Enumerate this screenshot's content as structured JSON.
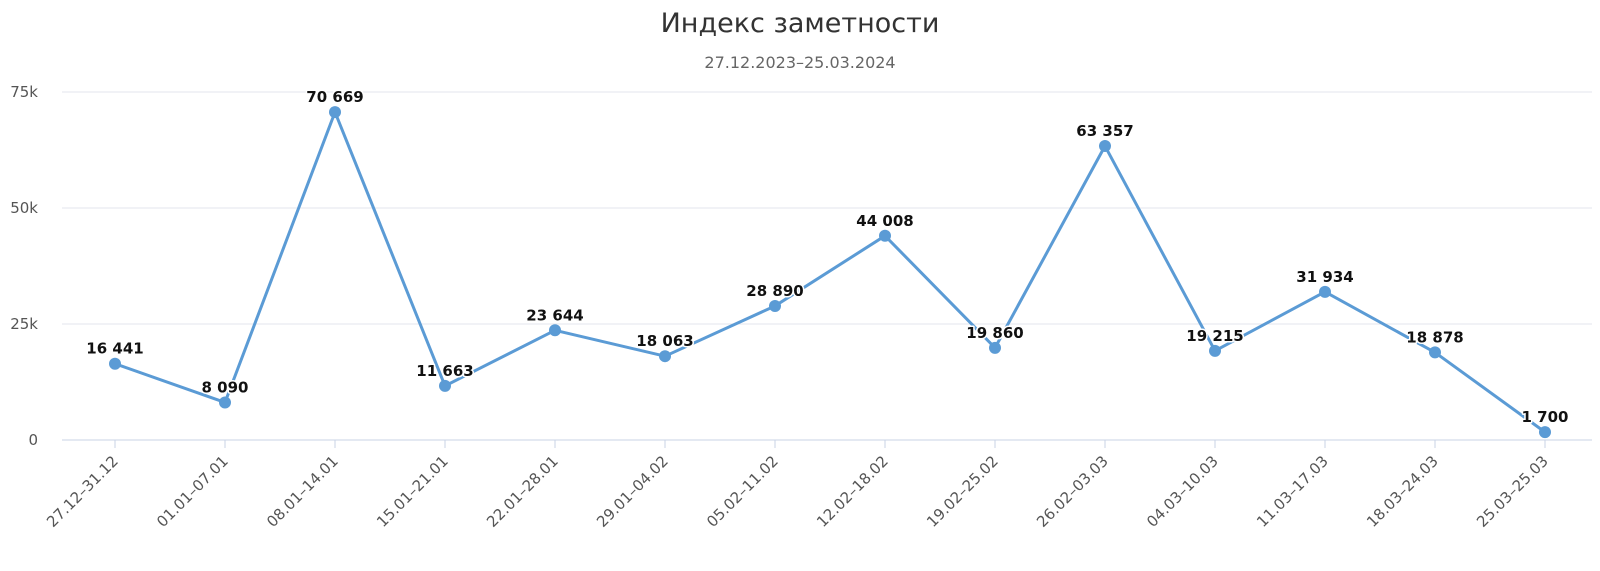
{
  "chart_data": {
    "type": "line",
    "title": "Индекс заметности",
    "subtitle": "27.12.2023–25.03.2024",
    "xlabel": "",
    "ylabel": "",
    "ylim": [
      0,
      75000
    ],
    "y_ticks": [
      {
        "value": 0,
        "label": "0"
      },
      {
        "value": 25000,
        "label": "25k"
      },
      {
        "value": 50000,
        "label": "50k"
      },
      {
        "value": 75000,
        "label": "75k"
      }
    ],
    "grid": true,
    "legend": "none",
    "color": "#5b9bd5",
    "categories": [
      "27.12–31.12",
      "01.01–07.01",
      "08.01–14.01",
      "15.01–21.01",
      "22.01–28.01",
      "29.01–04.02",
      "05.02–11.02",
      "12.02–18.02",
      "19.02–25.02",
      "26.02–03.03",
      "04.03–10.03",
      "11.03–17.03",
      "18.03–24.03",
      "25.03–25.03"
    ],
    "values": [
      16441,
      8090,
      70669,
      11663,
      23644,
      18063,
      28890,
      44008,
      19860,
      63357,
      19215,
      31934,
      18878,
      1700
    ],
    "data_labels": [
      "16 441",
      "8 090",
      "70 669",
      "11 663",
      "23 644",
      "18 063",
      "28 890",
      "44 008",
      "19 860",
      "63 357",
      "19 215",
      "31 934",
      "18 878",
      "1 700"
    ]
  }
}
